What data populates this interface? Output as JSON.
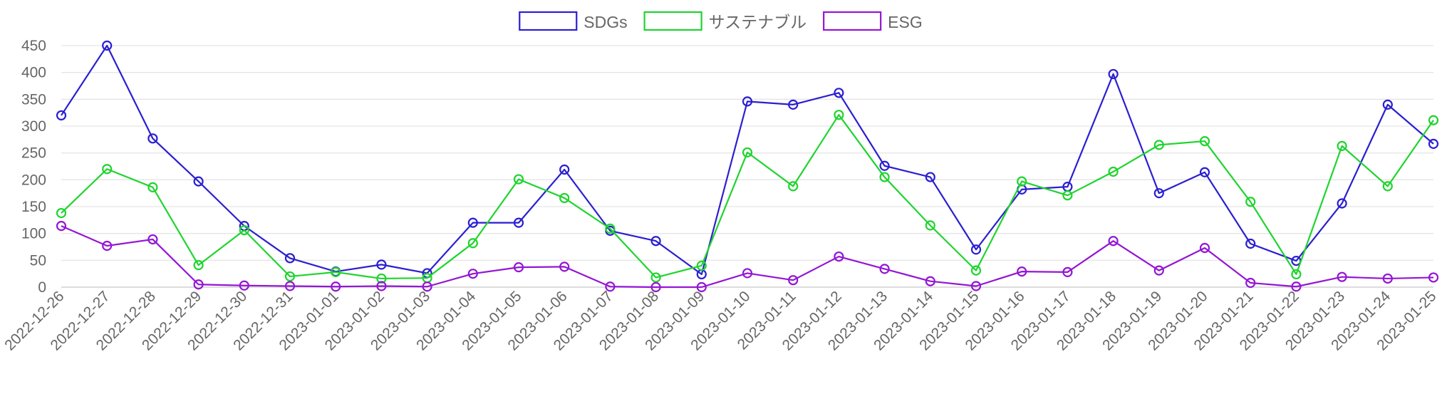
{
  "chart_data": {
    "type": "line",
    "categories": [
      "2022-12-26",
      "2022-12-27",
      "2022-12-28",
      "2022-12-29",
      "2022-12-30",
      "2022-12-31",
      "2023-01-01",
      "2023-01-02",
      "2023-01-03",
      "2023-01-04",
      "2023-01-05",
      "2023-01-06",
      "2023-01-07",
      "2023-01-08",
      "2023-01-09",
      "2023-01-10",
      "2023-01-11",
      "2023-01-12",
      "2023-01-13",
      "2023-01-14",
      "2023-01-15",
      "2023-01-16",
      "2023-01-17",
      "2023-01-18",
      "2023-01-19",
      "2023-01-20",
      "2023-01-21",
      "2023-01-22",
      "2023-01-23",
      "2023-01-24",
      "2023-01-25"
    ],
    "series": [
      {
        "name": "SDGs",
        "color": "#2b1fd0",
        "values": [
          320,
          450,
          277,
          197,
          114,
          54,
          29,
          42,
          26,
          120,
          120,
          219,
          105,
          86,
          24,
          346,
          340,
          362,
          226,
          205,
          70,
          182,
          187,
          397,
          175,
          214,
          81,
          49,
          156,
          340,
          267
        ]
      },
      {
        "name": "サステナブル",
        "color": "#1fd42e",
        "values": [
          138,
          220,
          186,
          41,
          106,
          20,
          28,
          16,
          17,
          82,
          201,
          166,
          109,
          18,
          40,
          251,
          188,
          321,
          205,
          115,
          31,
          197,
          171,
          215,
          265,
          272,
          159,
          24,
          263,
          188,
          311
        ]
      },
      {
        "name": "ESG",
        "color": "#9416d4",
        "values": [
          114,
          77,
          89,
          5,
          3,
          2,
          1,
          2,
          1,
          25,
          37,
          38,
          1,
          0,
          0,
          26,
          13,
          57,
          34,
          11,
          2,
          29,
          28,
          86,
          31,
          73,
          8,
          1,
          19,
          16,
          18
        ]
      }
    ],
    "ylim": [
      0,
      450
    ],
    "yticks": [
      0,
      50,
      100,
      150,
      200,
      250,
      300,
      350,
      400,
      450
    ],
    "grid": true,
    "legend": "top-center"
  }
}
